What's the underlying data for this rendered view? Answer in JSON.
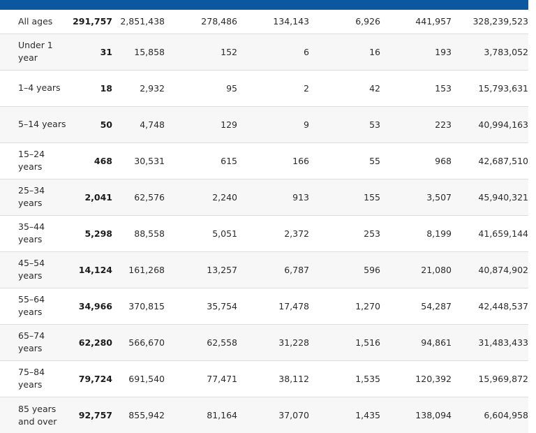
{
  "rows": [
    {
      "age": "All ages",
      "v": [
        "291,757",
        "2,851,438",
        "278,486",
        "134,143",
        "6,926",
        "441,957",
        "328,239,523"
      ]
    },
    {
      "age": "Under 1 year",
      "v": [
        "31",
        "15,858",
        "152",
        "6",
        "16",
        "193",
        "3,783,052"
      ]
    },
    {
      "age": "1–4 years",
      "v": [
        "18",
        "2,932",
        "95",
        "2",
        "42",
        "153",
        "15,793,631"
      ]
    },
    {
      "age": "5–14 years",
      "v": [
        "50",
        "4,748",
        "129",
        "9",
        "53",
        "223",
        "40,994,163"
      ]
    },
    {
      "age": "15–24 years",
      "v": [
        "468",
        "30,531",
        "615",
        "166",
        "55",
        "968",
        "42,687,510"
      ]
    },
    {
      "age": "25–34 years",
      "v": [
        "2,041",
        "62,576",
        "2,240",
        "913",
        "155",
        "3,507",
        "45,940,321"
      ]
    },
    {
      "age": "35–44 years",
      "v": [
        "5,298",
        "88,558",
        "5,051",
        "2,372",
        "253",
        "8,199",
        "41,659,144"
      ]
    },
    {
      "age": "45–54 years",
      "v": [
        "14,124",
        "161,268",
        "13,257",
        "6,787",
        "596",
        "21,080",
        "40,874,902"
      ]
    },
    {
      "age": "55–64 years",
      "v": [
        "34,966",
        "370,815",
        "35,754",
        "17,478",
        "1,270",
        "54,287",
        "42,448,537"
      ]
    },
    {
      "age": "65–74 years",
      "v": [
        "62,280",
        "566,670",
        "62,558",
        "31,228",
        "1,516",
        "94,861",
        "31,483,433"
      ]
    },
    {
      "age": "75–84 years",
      "v": [
        "79,724",
        "691,540",
        "77,471",
        "38,112",
        "1,535",
        "120,392",
        "15,969,872"
      ]
    },
    {
      "age": "85 years and over",
      "v": [
        "92,757",
        "855,942",
        "81,164",
        "37,070",
        "1,435",
        "138,094",
        "6,604,958"
      ]
    }
  ],
  "colors": {
    "header": "#0b58a1",
    "stripe": "#f7f7f7"
  }
}
